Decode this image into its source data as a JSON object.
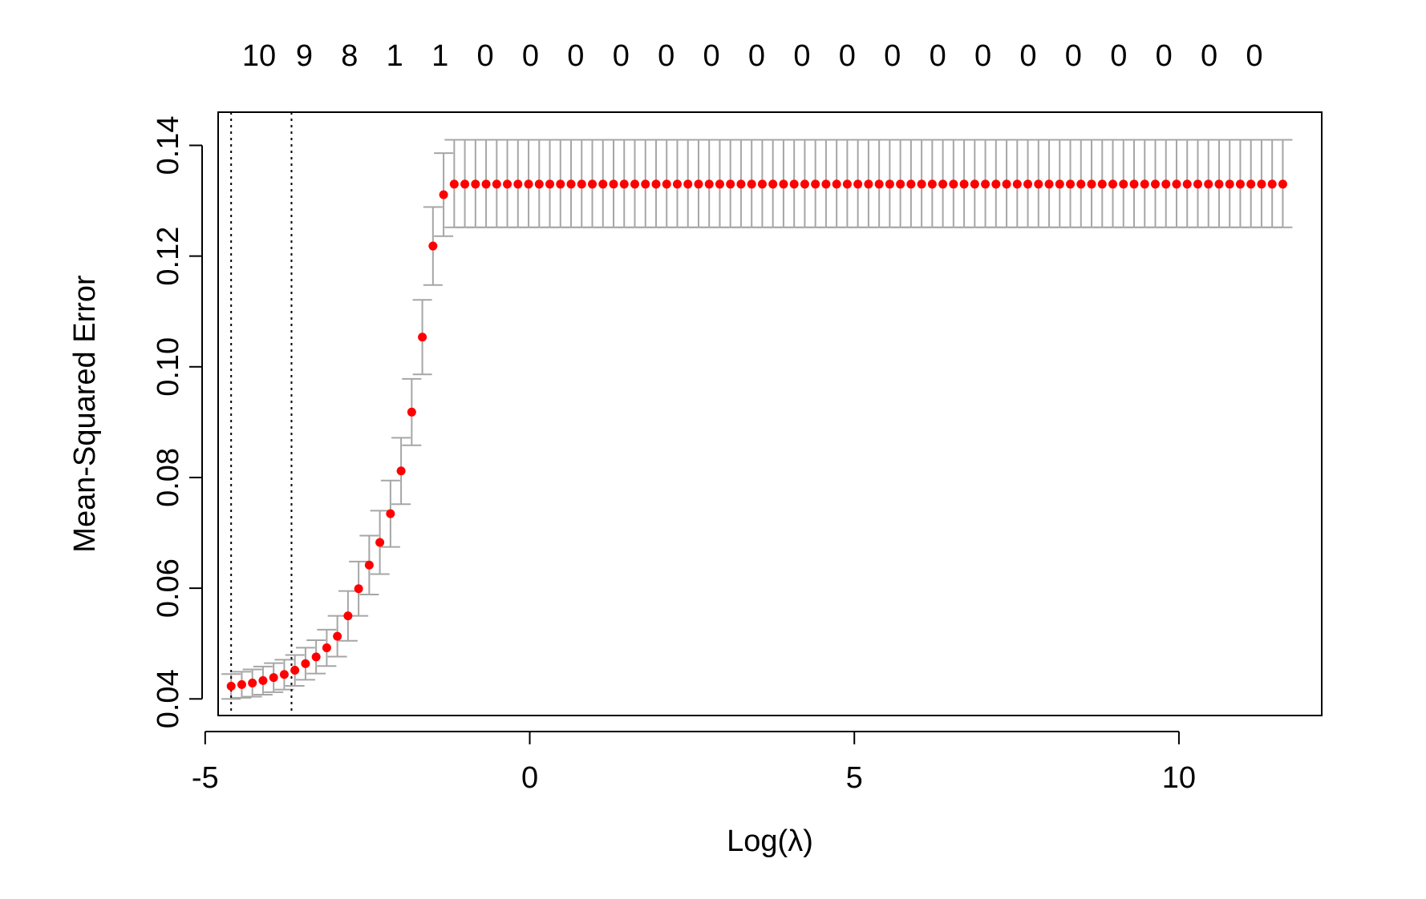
{
  "chart_data": {
    "type": "scatter",
    "title": "",
    "xlabel": "Log(λ)",
    "ylabel": "Mean-Squared Error",
    "xlim": [
      -4.8,
      12.2
    ],
    "ylim": [
      0.037,
      0.146
    ],
    "x_ticks": [
      -5,
      0,
      5,
      10
    ],
    "x_tick_labels": [
      "-5",
      "0",
      "5",
      "10"
    ],
    "y_ticks": [
      0.04,
      0.06,
      0.08,
      0.1,
      0.12,
      0.14
    ],
    "y_tick_labels": [
      "0.04",
      "0.06",
      "0.08",
      "0.10",
      "0.12",
      "0.14"
    ],
    "top_axis_labels": [
      "10",
      "9",
      "8",
      "1",
      "1",
      "0",
      "0",
      "0",
      "0",
      "0",
      "0",
      "0",
      "0",
      "0",
      "0",
      "0",
      "0",
      "0",
      "0",
      "0",
      "0",
      "0",
      "0"
    ],
    "vlines": [
      -4.6,
      -3.67
    ],
    "grid": false,
    "point_color": "#ff0000",
    "errorbar_color": "#a6a6a6",
    "series": [
      {
        "x": [
          -4.6,
          -4.2,
          -3.67,
          -3.3,
          -3.0,
          -2.8,
          -2.6,
          -2.4,
          -2.2,
          -2.0,
          -1.8,
          -1.6,
          -1.5,
          -1.4,
          -1.3,
          -1.22,
          11.6
        ],
        "y": [
          0.0423,
          0.043,
          0.0448,
          0.0475,
          0.0505,
          0.055,
          0.061,
          0.066,
          0.071,
          0.08,
          0.093,
          0.11,
          0.121,
          0.13,
          0.1315,
          0.133,
          0.133
        ],
        "y_lower": [
          0.04,
          0.0405,
          0.042,
          0.0445,
          0.047,
          0.0505,
          0.056,
          0.0605,
          0.065,
          0.074,
          0.087,
          0.103,
          0.114,
          0.1225,
          0.124,
          0.1252,
          0.1252
        ],
        "y_upper": [
          0.0445,
          0.0455,
          0.0475,
          0.0505,
          0.054,
          0.0595,
          0.066,
          0.0715,
          0.077,
          0.086,
          0.099,
          0.117,
          0.128,
          0.1375,
          0.139,
          0.141,
          0.141
        ]
      }
    ]
  }
}
